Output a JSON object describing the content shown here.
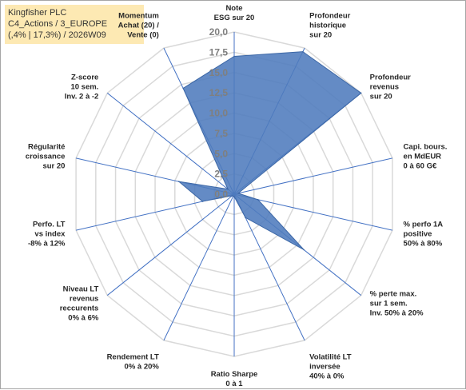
{
  "header": {
    "line1": "Kingfisher PLC",
    "line2": "C4_Actions / 3_EUROPE",
    "line3": "(,4% | 17,3%) / 2026W09"
  },
  "chart_data": {
    "type": "radar",
    "max": 20,
    "ticks": [
      "0,0",
      "2,5",
      "5,0",
      "7,5",
      "10,0",
      "12,5",
      "15,0",
      "17,5",
      "20,0"
    ],
    "axes": [
      [
        "Note",
        "ESG sur 20"
      ],
      [
        "Profondeur",
        "historique",
        "sur 20"
      ],
      [
        "Profondeur",
        "revenus",
        "sur 20"
      ],
      [
        "Capi. bours.",
        "en MdEUR",
        "0 à 60 G€"
      ],
      [
        "% perfo 1A",
        "positive",
        "50% à 80%"
      ],
      [
        "% perte max.",
        "sur 1 sem.",
        "Inv. 50% à 20%"
      ],
      [
        "Volatilité LT",
        "inversée",
        "40% à 0%"
      ],
      [
        "Ratio Sharpe",
        "0 à 1"
      ],
      [
        "Rendement LT",
        "0% à 20%"
      ],
      [
        "Niveau LT",
        "revenus",
        "reccurents",
        "0% à 6%"
      ],
      [
        "Perfo. LT",
        "vs index",
        "-8% à 12%"
      ],
      [
        "Régularité",
        "croissance",
        "sur 20"
      ],
      [
        "Z-score",
        "10 sem.",
        "Inv. 2 à -2"
      ],
      [
        "Momentum",
        "Achat (20) /",
        "Vente (0)"
      ]
    ],
    "values": [
      17.0,
      19.5,
      20.0,
      0.5,
      3.0,
      11.0,
      3.2,
      0.3,
      0.3,
      0.3,
      4.0,
      7.0,
      1.0,
      14.5
    ],
    "colors": {
      "fill": "#4f7bbd",
      "stroke": "#3c67a6",
      "grid": "#d9d9d9",
      "axis": "#4472c4"
    },
    "grid": true
  }
}
